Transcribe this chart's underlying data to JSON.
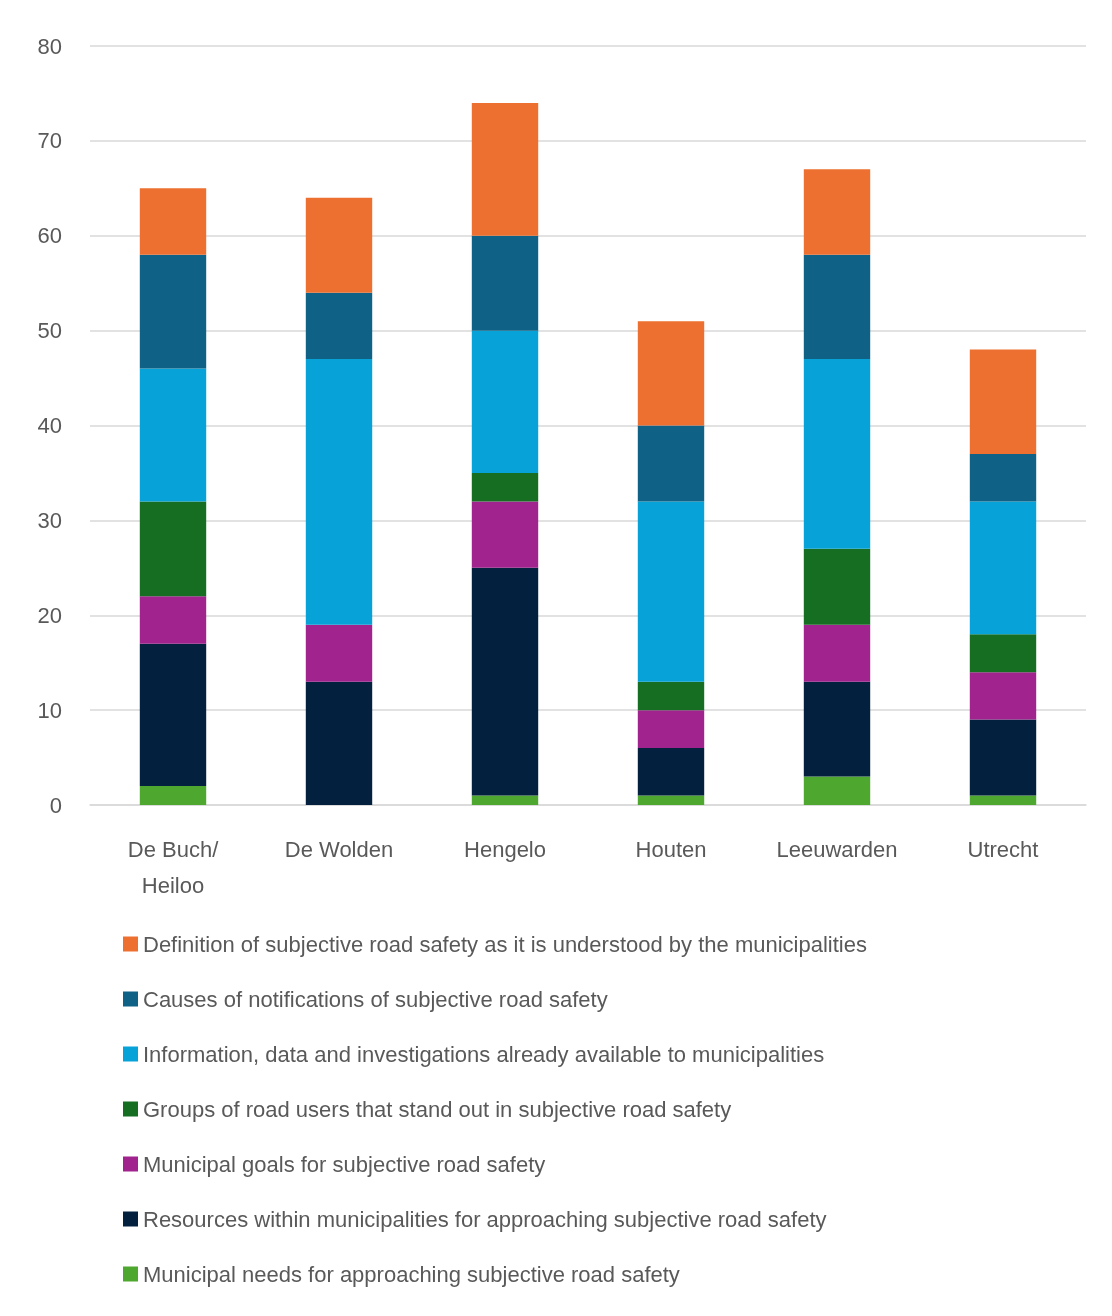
{
  "chart_data": {
    "type": "bar",
    "stacked": true,
    "categories": [
      "De Buch/Heiloo",
      "De Wolden",
      "Hengelo",
      "Houten",
      "Leeuwarden",
      "Utrecht"
    ],
    "series": [
      {
        "name": "Municipal needs for approaching subjective road safety",
        "color": "#4ea72e",
        "values": [
          2,
          0,
          1,
          1,
          3,
          1
        ]
      },
      {
        "name": "Resources within municipalities for approaching subjective road safety",
        "color": "#03213f",
        "values": [
          15,
          13,
          24,
          5,
          10,
          8
        ]
      },
      {
        "name": "Municipal goals for subjective road safety",
        "color": "#a0238e",
        "values": [
          5,
          6,
          7,
          4,
          6,
          5
        ]
      },
      {
        "name": "Groups of road users that stand out in subjective road safety",
        "color": "#156e22",
        "values": [
          10,
          0,
          3,
          3,
          8,
          4
        ]
      },
      {
        "name": "Information, data and investigations already available to municipalities",
        "color": "#07a2d8",
        "values": [
          14,
          28,
          15,
          19,
          20,
          14
        ]
      },
      {
        "name": "Causes of notifications of subjective road safety",
        "color": "#0f6185",
        "values": [
          12,
          7,
          10,
          8,
          11,
          5
        ]
      },
      {
        "name": "Definition of subjective road safety as it is understood by the municipalities",
        "color": "#ed7031",
        "values": [
          7,
          10,
          14,
          11,
          9,
          11
        ]
      }
    ],
    "ylim": [
      0,
      80
    ],
    "yticks": [
      0,
      10,
      20,
      30,
      40,
      50,
      60,
      70,
      80
    ],
    "grid": true,
    "legend": "bottom"
  }
}
